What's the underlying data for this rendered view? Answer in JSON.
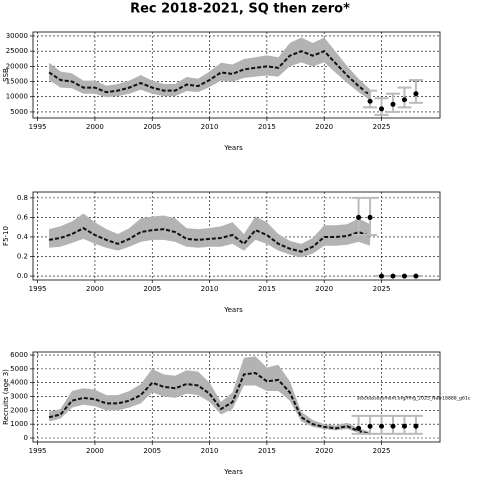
{
  "title": "Rec 2018-2021, SQ then zero*",
  "chart_data": [
    {
      "type": "line",
      "xlabel": "Years",
      "ylabel": "SSB",
      "x": [
        1996,
        1997,
        1998,
        1999,
        2000,
        2001,
        2002,
        2003,
        2004,
        2005,
        2006,
        2007,
        2008,
        2009,
        2010,
        2011,
        2012,
        2013,
        2014,
        2015,
        2016,
        2017,
        2018,
        2019,
        2020,
        2021,
        2022,
        2023,
        2024
      ],
      "values": [
        18000,
        15500,
        15000,
        13000,
        13000,
        11500,
        12000,
        13000,
        14500,
        13000,
        12000,
        12000,
        14000,
        13500,
        15500,
        18000,
        17500,
        19000,
        19500,
        20000,
        19500,
        23500,
        25000,
        23500,
        25000,
        21000,
        17000,
        13500,
        10500
      ],
      "lower": [
        15500,
        13000,
        12800,
        11000,
        11000,
        9800,
        10200,
        11000,
        12300,
        11000,
        10200,
        10200,
        11900,
        11500,
        13200,
        15300,
        14900,
        16200,
        16600,
        17000,
        16600,
        20000,
        21300,
        20000,
        21300,
        17900,
        14500,
        11500,
        8900
      ],
      "upper": [
        21200,
        18300,
        17700,
        15300,
        15300,
        13600,
        14200,
        15300,
        17100,
        15300,
        14200,
        14200,
        16500,
        15900,
        18300,
        21200,
        20600,
        22400,
        23000,
        23600,
        23000,
        27700,
        29500,
        27700,
        29500,
        24800,
        20100,
        15900,
        12400
      ],
      "forecast": {
        "x": [
          2024,
          2025,
          2026,
          2027,
          2028
        ],
        "values": [
          8500,
          6000,
          7500,
          9000,
          11000
        ],
        "lower": [
          6500,
          4000,
          5000,
          6500,
          8000
        ],
        "upper": [
          12000,
          9500,
          11000,
          13000,
          15500
        ]
      },
      "xlim": [
        1994.6,
        2030.1
      ],
      "xticks": [
        1995,
        2000,
        2005,
        2010,
        2015,
        2020,
        2025
      ],
      "ylim": [
        3000,
        31300
      ],
      "yticks": [
        5000,
        10000,
        15000,
        20000,
        25000,
        30000
      ],
      "grid": true,
      "band_color": "#b3b3b3",
      "line_color": "#111111",
      "forecast_color": "#bbbbbb"
    },
    {
      "type": "line",
      "xlabel": "Years",
      "ylabel": "F5-10",
      "x": [
        1996,
        1997,
        1998,
        1999,
        2000,
        2001,
        2002,
        2003,
        2004,
        2005,
        2006,
        2007,
        2008,
        2009,
        2010,
        2011,
        2012,
        2013,
        2014,
        2015,
        2016,
        2017,
        2018,
        2019,
        2020,
        2021,
        2022,
        2023,
        2024
      ],
      "values": [
        0.37,
        0.39,
        0.43,
        0.49,
        0.42,
        0.37,
        0.33,
        0.38,
        0.45,
        0.47,
        0.48,
        0.45,
        0.38,
        0.37,
        0.38,
        0.39,
        0.42,
        0.33,
        0.47,
        0.42,
        0.33,
        0.28,
        0.25,
        0.3,
        0.4,
        0.4,
        0.41,
        0.45,
        0.41
      ],
      "lower": [
        0.29,
        0.3,
        0.34,
        0.38,
        0.33,
        0.29,
        0.26,
        0.3,
        0.35,
        0.37,
        0.37,
        0.35,
        0.3,
        0.29,
        0.3,
        0.3,
        0.33,
        0.26,
        0.37,
        0.33,
        0.26,
        0.22,
        0.19,
        0.23,
        0.31,
        0.31,
        0.32,
        0.35,
        0.31
      ],
      "upper": [
        0.48,
        0.51,
        0.56,
        0.64,
        0.55,
        0.48,
        0.43,
        0.49,
        0.59,
        0.61,
        0.62,
        0.59,
        0.49,
        0.48,
        0.49,
        0.51,
        0.55,
        0.43,
        0.61,
        0.55,
        0.43,
        0.36,
        0.33,
        0.39,
        0.52,
        0.52,
        0.53,
        0.59,
        0.53
      ],
      "forecast": {
        "x": [
          2023,
          2024,
          2025,
          2026,
          2027,
          2028
        ],
        "values": [
          0.6,
          0.6,
          0,
          0,
          0,
          0
        ],
        "lower": [
          0.42,
          0.42,
          0,
          0,
          0,
          0
        ],
        "upper": [
          0.8,
          0.8,
          0,
          0,
          0,
          0
        ]
      },
      "xlim": [
        1994.6,
        2030.1
      ],
      "xticks": [
        1995,
        2000,
        2005,
        2010,
        2015,
        2020,
        2025
      ],
      "ylim": [
        -0.04,
        0.86
      ],
      "yticks": [
        {
          "value": 0,
          "label": "0.0"
        },
        0.2,
        0.4,
        0.6,
        0.8
      ],
      "grid": true,
      "band_color": "#b3b3b3",
      "line_color": "#111111",
      "forecast_color": "#bbbbbb"
    },
    {
      "type": "line",
      "xlabel": "Years",
      "ylabel": "Recruits (age 3)",
      "annotation": "stockassessment.org/fmg_2025_Natr18888_g61c",
      "x": [
        1996,
        1997,
        1998,
        1999,
        2000,
        2001,
        2002,
        2003,
        2004,
        2005,
        2006,
        2007,
        2008,
        2009,
        2010,
        2011,
        2012,
        2013,
        2014,
        2015,
        2016,
        2017,
        2018,
        2019,
        2020,
        2021,
        2022,
        2023,
        2024
      ],
      "values": [
        1500,
        1700,
        2700,
        2900,
        2800,
        2500,
        2500,
        2700,
        3100,
        4000,
        3700,
        3600,
        3900,
        3800,
        3200,
        2100,
        2600,
        4600,
        4700,
        4100,
        4200,
        3300,
        1500,
        1000,
        800,
        700,
        850,
        500,
        300
      ],
      "lower": [
        1200,
        1400,
        2200,
        2400,
        2300,
        2000,
        2000,
        2200,
        2500,
        3300,
        3000,
        2900,
        3200,
        3100,
        2600,
        1700,
        2100,
        3800,
        3800,
        3400,
        3400,
        2700,
        1200,
        800,
        650,
        550,
        650,
        380,
        200
      ],
      "upper": [
        1900,
        2100,
        3400,
        3600,
        3500,
        3100,
        3100,
        3400,
        3900,
        5000,
        4600,
        4500,
        4900,
        4800,
        4000,
        2600,
        3300,
        5800,
        5900,
        5100,
        5300,
        4100,
        1900,
        1300,
        1000,
        900,
        1100,
        700,
        450
      ],
      "forecast": {
        "x": [
          2023,
          2024,
          2025,
          2026,
          2027,
          2028
        ],
        "values": [
          700,
          850,
          850,
          850,
          850,
          850
        ],
        "lower": [
          300,
          300,
          300,
          300,
          300,
          300
        ],
        "upper": [
          1600,
          1600,
          1600,
          1600,
          1600,
          1600
        ]
      },
      "xlim": [
        1994.6,
        2030.1
      ],
      "xticks": [
        1995,
        2000,
        2005,
        2010,
        2015,
        2020,
        2025
      ],
      "ylim": [
        -290,
        6220
      ],
      "yticks": [
        0,
        1000,
        2000,
        3000,
        4000,
        5000,
        6000
      ],
      "grid": true,
      "band_color": "#b3b3b3",
      "line_color": "#111111",
      "forecast_color": "#bbbbbb"
    }
  ]
}
